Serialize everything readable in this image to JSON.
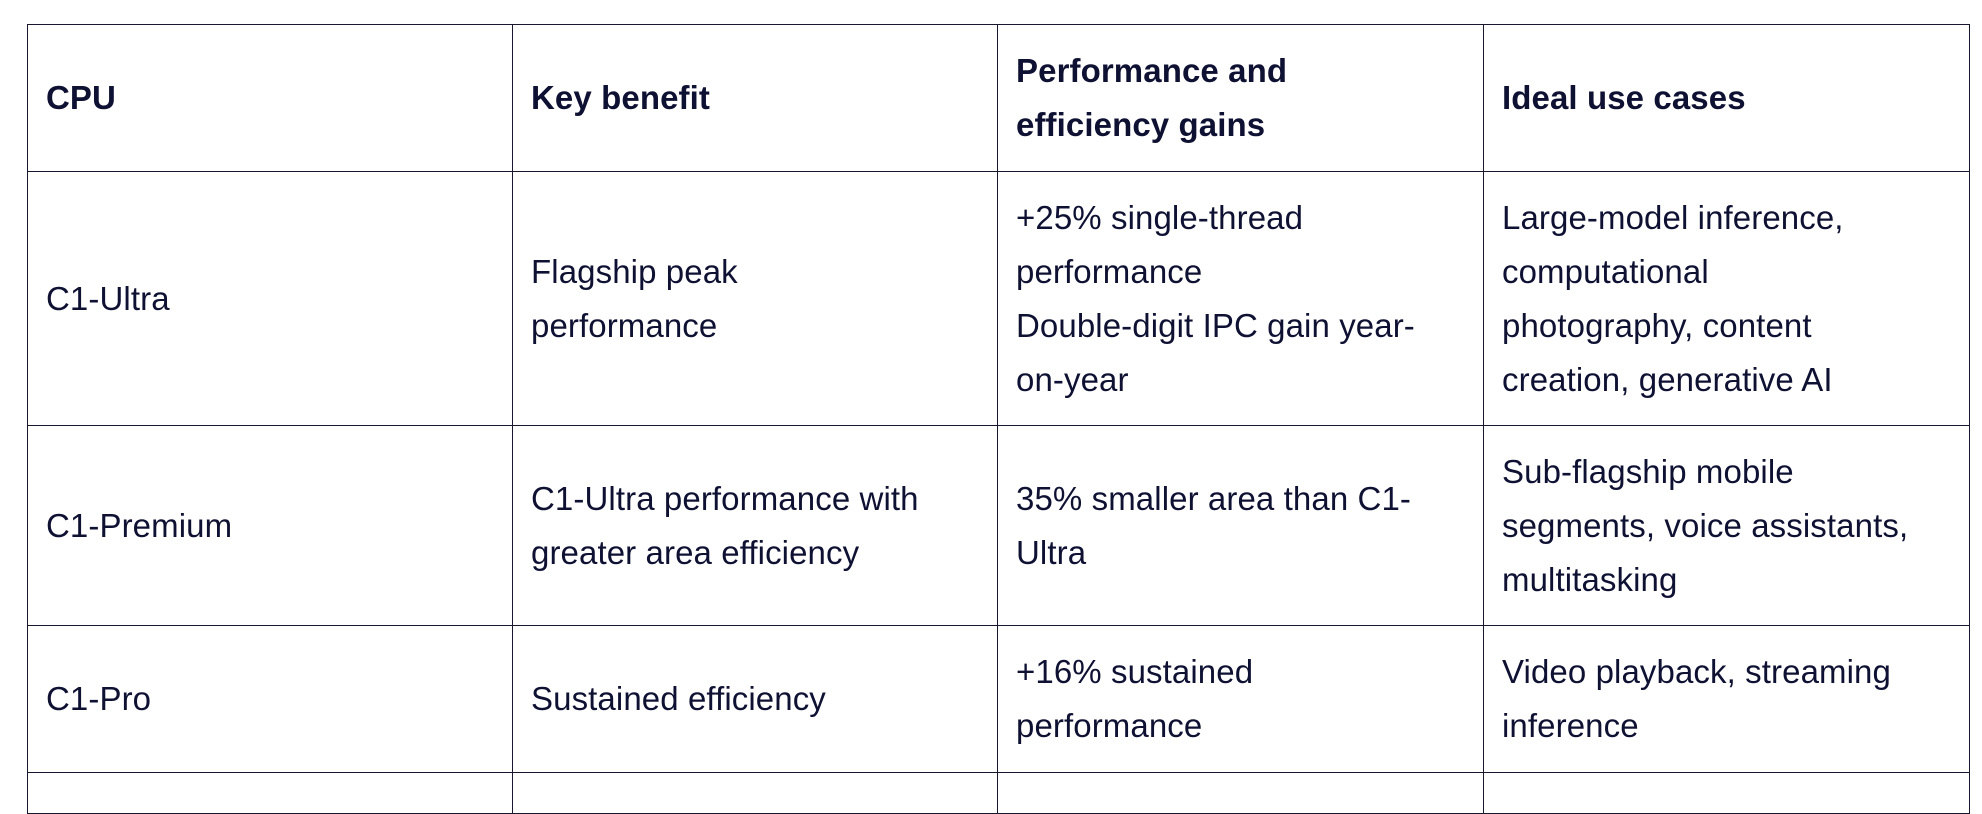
{
  "table": {
    "headers": [
      [
        "CPU"
      ],
      [
        "Key benefit"
      ],
      [
        "Performance and",
        "efficiency gains"
      ],
      [
        "Ideal use cases"
      ]
    ],
    "rows": [
      {
        "cpu": "C1-Ultra",
        "key_benefit": [
          "Flagship peak",
          "performance"
        ],
        "gains": [
          "+25% single-thread",
          "performance",
          "Double-digit IPC gain year-",
          "on-year"
        ],
        "use_cases": [
          "Large-model inference,",
          "computational",
          "photography, content",
          "creation, generative AI"
        ]
      },
      {
        "cpu": "C1-Premium",
        "key_benefit": [
          "C1-Ultra performance with",
          "greater area efficiency"
        ],
        "gains": [
          "35% smaller area than C1-",
          "Ultra"
        ],
        "use_cases": [
          "Sub-flagship mobile",
          "segments, voice assistants,",
          "multitasking"
        ]
      },
      {
        "cpu": "C1-Pro",
        "key_benefit": [
          "Sustained efficiency"
        ],
        "gains": [
          "+16% sustained",
          "performance"
        ],
        "use_cases": [
          "Video playback, streaming",
          "inference"
        ]
      }
    ]
  }
}
